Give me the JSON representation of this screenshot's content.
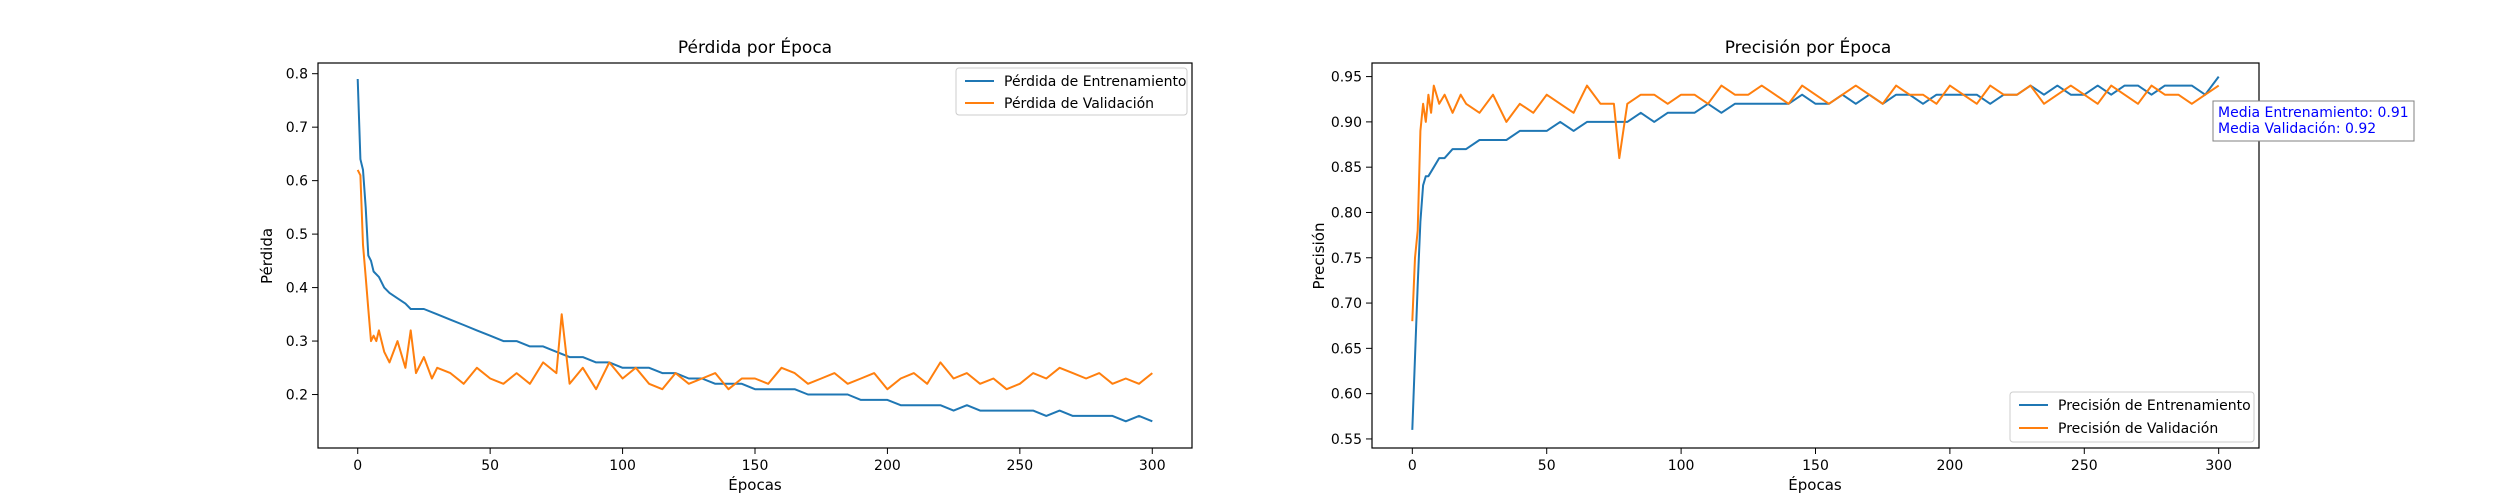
{
  "chart_data": [
    {
      "type": "line",
      "title": "Pérdida por Época",
      "xlabel": "Épocas",
      "ylabel": "Pérdida",
      "xlim": [
        -15,
        315
      ],
      "ylim": [
        0.1,
        0.82
      ],
      "x_ticks": [
        0,
        50,
        100,
        150,
        200,
        250,
        300
      ],
      "y_ticks": [
        0.2,
        0.3,
        0.4,
        0.5,
        0.6,
        0.7,
        0.8
      ],
      "y_tick_decimals": 1,
      "legend_position": "upper right",
      "series": [
        {
          "name": "Pérdida de Entrenamiento",
          "color": "#1f77b4",
          "x": [
            0,
            1,
            2,
            3,
            4,
            5,
            6,
            8,
            10,
            12,
            15,
            18,
            20,
            25,
            30,
            35,
            40,
            45,
            50,
            55,
            60,
            65,
            70,
            75,
            80,
            85,
            90,
            95,
            100,
            105,
            110,
            115,
            120,
            125,
            130,
            135,
            140,
            145,
            150,
            155,
            160,
            165,
            170,
            175,
            180,
            185,
            190,
            195,
            200,
            205,
            210,
            215,
            220,
            225,
            230,
            235,
            240,
            245,
            250,
            255,
            260,
            265,
            270,
            275,
            280,
            285,
            290,
            295,
            300
          ],
          "values": [
            0.79,
            0.64,
            0.62,
            0.55,
            0.46,
            0.45,
            0.43,
            0.42,
            0.4,
            0.39,
            0.38,
            0.37,
            0.36,
            0.36,
            0.35,
            0.34,
            0.33,
            0.32,
            0.31,
            0.3,
            0.3,
            0.29,
            0.29,
            0.28,
            0.27,
            0.27,
            0.26,
            0.26,
            0.25,
            0.25,
            0.25,
            0.24,
            0.24,
            0.23,
            0.23,
            0.22,
            0.22,
            0.22,
            0.21,
            0.21,
            0.21,
            0.21,
            0.2,
            0.2,
            0.2,
            0.2,
            0.19,
            0.19,
            0.19,
            0.18,
            0.18,
            0.18,
            0.18,
            0.17,
            0.18,
            0.17,
            0.17,
            0.17,
            0.17,
            0.17,
            0.16,
            0.17,
            0.16,
            0.16,
            0.16,
            0.16,
            0.15,
            0.16,
            0.15
          ]
        },
        {
          "name": "Pérdida de Validación",
          "color": "#ff7f0e",
          "x": [
            0,
            1,
            2,
            3,
            4,
            5,
            6,
            7,
            8,
            10,
            12,
            15,
            18,
            20,
            22,
            25,
            28,
            30,
            35,
            40,
            45,
            50,
            55,
            60,
            65,
            70,
            75,
            77,
            80,
            85,
            90,
            95,
            100,
            105,
            110,
            115,
            120,
            125,
            130,
            135,
            140,
            145,
            150,
            155,
            160,
            165,
            170,
            175,
            180,
            185,
            190,
            195,
            200,
            205,
            210,
            215,
            220,
            225,
            230,
            235,
            240,
            245,
            250,
            255,
            260,
            265,
            270,
            275,
            280,
            285,
            290,
            295,
            300
          ],
          "values": [
            0.62,
            0.61,
            0.48,
            0.42,
            0.36,
            0.3,
            0.31,
            0.3,
            0.32,
            0.28,
            0.26,
            0.3,
            0.25,
            0.32,
            0.24,
            0.27,
            0.23,
            0.25,
            0.24,
            0.22,
            0.25,
            0.23,
            0.22,
            0.24,
            0.22,
            0.26,
            0.24,
            0.35,
            0.22,
            0.25,
            0.21,
            0.26,
            0.23,
            0.25,
            0.22,
            0.21,
            0.24,
            0.22,
            0.23,
            0.24,
            0.21,
            0.23,
            0.23,
            0.22,
            0.25,
            0.24,
            0.22,
            0.23,
            0.24,
            0.22,
            0.23,
            0.24,
            0.21,
            0.23,
            0.24,
            0.22,
            0.26,
            0.23,
            0.24,
            0.22,
            0.23,
            0.21,
            0.22,
            0.24,
            0.23,
            0.25,
            0.24,
            0.23,
            0.24,
            0.22,
            0.23,
            0.22,
            0.24
          ]
        }
      ]
    },
    {
      "type": "line",
      "title": "Precisión por Época",
      "xlabel": "Épocas",
      "ylabel": "Precisión",
      "xlim": [
        -15,
        315
      ],
      "ylim": [
        0.54,
        0.965
      ],
      "x_ticks": [
        0,
        50,
        100,
        150,
        200,
        250,
        300
      ],
      "y_ticks": [
        0.55,
        0.6,
        0.65,
        0.7,
        0.75,
        0.8,
        0.85,
        0.9,
        0.95
      ],
      "y_tick_decimals": 2,
      "legend_position": "lower right",
      "series": [
        {
          "name": "Precisión de Entrenamiento",
          "color": "#1f77b4",
          "x": [
            0,
            1,
            2,
            3,
            4,
            5,
            6,
            8,
            10,
            12,
            15,
            18,
            20,
            25,
            30,
            35,
            40,
            45,
            50,
            55,
            60,
            65,
            70,
            75,
            80,
            85,
            90,
            95,
            100,
            105,
            110,
            115,
            120,
            125,
            130,
            135,
            140,
            145,
            150,
            155,
            160,
            165,
            170,
            175,
            180,
            185,
            190,
            195,
            200,
            205,
            210,
            215,
            220,
            225,
            230,
            235,
            240,
            245,
            250,
            255,
            260,
            265,
            270,
            275,
            280,
            285,
            290,
            295,
            300
          ],
          "values": [
            0.56,
            0.64,
            0.72,
            0.79,
            0.83,
            0.84,
            0.84,
            0.85,
            0.86,
            0.86,
            0.87,
            0.87,
            0.87,
            0.88,
            0.88,
            0.88,
            0.89,
            0.89,
            0.89,
            0.9,
            0.89,
            0.9,
            0.9,
            0.9,
            0.9,
            0.91,
            0.9,
            0.91,
            0.91,
            0.91,
            0.92,
            0.91,
            0.92,
            0.92,
            0.92,
            0.92,
            0.92,
            0.93,
            0.92,
            0.92,
            0.93,
            0.92,
            0.93,
            0.92,
            0.93,
            0.93,
            0.92,
            0.93,
            0.93,
            0.93,
            0.93,
            0.92,
            0.93,
            0.93,
            0.94,
            0.93,
            0.94,
            0.93,
            0.93,
            0.94,
            0.93,
            0.94,
            0.94,
            0.93,
            0.94,
            0.94,
            0.94,
            0.93,
            0.95
          ]
        },
        {
          "name": "Precisión de Validación",
          "color": "#ff7f0e",
          "x": [
            0,
            1,
            2,
            3,
            4,
            5,
            6,
            7,
            8,
            10,
            12,
            15,
            18,
            20,
            25,
            30,
            35,
            40,
            45,
            50,
            55,
            60,
            65,
            70,
            75,
            77,
            80,
            85,
            90,
            95,
            100,
            105,
            110,
            115,
            120,
            125,
            130,
            135,
            140,
            145,
            150,
            155,
            160,
            165,
            170,
            175,
            180,
            185,
            190,
            195,
            200,
            205,
            210,
            215,
            220,
            225,
            230,
            235,
            240,
            245,
            250,
            255,
            260,
            265,
            270,
            275,
            280,
            285,
            290,
            295,
            300
          ],
          "values": [
            0.68,
            0.75,
            0.78,
            0.89,
            0.92,
            0.9,
            0.93,
            0.91,
            0.94,
            0.92,
            0.93,
            0.91,
            0.93,
            0.92,
            0.91,
            0.93,
            0.9,
            0.92,
            0.91,
            0.93,
            0.92,
            0.91,
            0.94,
            0.92,
            0.92,
            0.86,
            0.92,
            0.93,
            0.93,
            0.92,
            0.93,
            0.93,
            0.92,
            0.94,
            0.93,
            0.93,
            0.94,
            0.93,
            0.92,
            0.94,
            0.93,
            0.92,
            0.93,
            0.94,
            0.93,
            0.92,
            0.94,
            0.93,
            0.93,
            0.92,
            0.94,
            0.93,
            0.92,
            0.94,
            0.93,
            0.93,
            0.94,
            0.92,
            0.93,
            0.94,
            0.93,
            0.92,
            0.94,
            0.93,
            0.92,
            0.94,
            0.93,
            0.93,
            0.92,
            0.93,
            0.94
          ]
        }
      ],
      "annotation": {
        "lines": [
          "Media Entrenamiento: 0.91",
          "Media Validación: 0.92"
        ],
        "color": "#0000ff"
      }
    }
  ]
}
